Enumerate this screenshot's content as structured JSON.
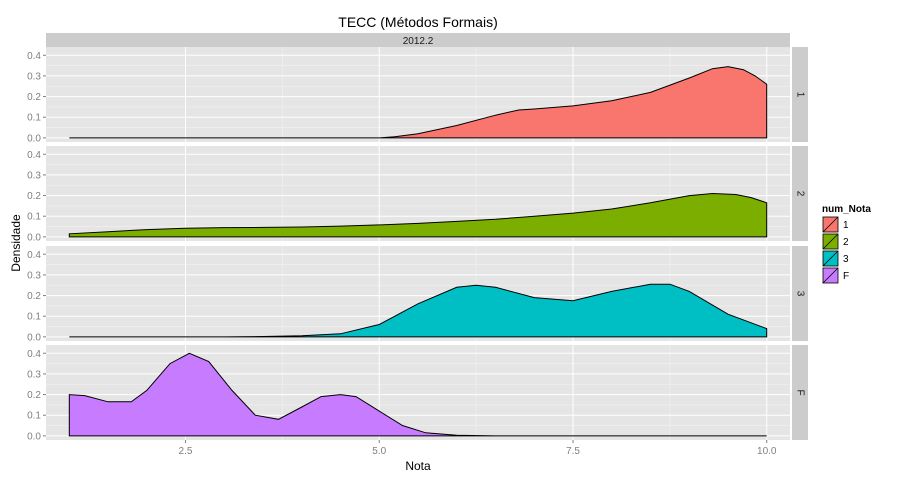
{
  "chart_data": {
    "type": "area",
    "title": "TECC (Métodos Formais)",
    "xlabel": "Nota",
    "ylabel": "Densidade",
    "top_strip": "2012.2",
    "xlim": [
      0.7,
      10.3
    ],
    "ylim": [
      -0.02,
      0.44
    ],
    "x_ticks": [
      2.5,
      5.0,
      7.5,
      10.0
    ],
    "x_tick_labels": [
      "2.5",
      "5.0",
      "7.5",
      "10.0"
    ],
    "y_ticks": [
      0.0,
      0.1,
      0.2,
      0.3,
      0.4
    ],
    "y_tick_labels": [
      "0.0",
      "0.1",
      "0.2",
      "0.3",
      "0.4"
    ],
    "grid": true,
    "legend": {
      "title": "num_Nota",
      "placement": "right",
      "entries": [
        "1",
        "2",
        "3",
        "F"
      ]
    },
    "series": [
      {
        "name": "1",
        "color": "#F8766D",
        "x": [
          1.0,
          2.0,
          3.0,
          4.0,
          5.0,
          5.2,
          5.5,
          6.0,
          6.5,
          6.8,
          7.0,
          7.5,
          8.0,
          8.5,
          9.0,
          9.3,
          9.5,
          9.7,
          9.85,
          10.0
        ],
        "y": [
          0.0,
          0.0,
          0.0,
          0.0,
          0.0,
          0.005,
          0.02,
          0.06,
          0.11,
          0.135,
          0.14,
          0.155,
          0.18,
          0.22,
          0.29,
          0.335,
          0.345,
          0.33,
          0.3,
          0.26
        ]
      },
      {
        "name": "2",
        "color": "#7CAE00",
        "x": [
          1.0,
          1.5,
          2.0,
          2.5,
          3.0,
          3.5,
          4.0,
          4.5,
          5.0,
          5.5,
          6.0,
          6.5,
          7.0,
          7.5,
          8.0,
          8.5,
          9.0,
          9.3,
          9.6,
          9.8,
          10.0
        ],
        "y": [
          0.015,
          0.025,
          0.035,
          0.042,
          0.045,
          0.046,
          0.048,
          0.052,
          0.058,
          0.065,
          0.075,
          0.085,
          0.1,
          0.115,
          0.135,
          0.165,
          0.2,
          0.21,
          0.205,
          0.19,
          0.165
        ]
      },
      {
        "name": "3",
        "color": "#00BFC4",
        "x": [
          1.0,
          2.0,
          3.0,
          3.5,
          4.0,
          4.5,
          5.0,
          5.5,
          6.0,
          6.25,
          6.5,
          7.0,
          7.5,
          8.0,
          8.5,
          8.75,
          9.0,
          9.5,
          10.0
        ],
        "y": [
          0.0,
          0.0,
          0.0,
          0.002,
          0.005,
          0.015,
          0.06,
          0.16,
          0.24,
          0.25,
          0.24,
          0.19,
          0.175,
          0.22,
          0.255,
          0.255,
          0.22,
          0.11,
          0.04
        ]
      },
      {
        "name": "F",
        "color": "#C77CFF",
        "x": [
          1.0,
          1.2,
          1.5,
          1.8,
          2.0,
          2.3,
          2.55,
          2.8,
          3.1,
          3.4,
          3.7,
          4.0,
          4.25,
          4.5,
          4.7,
          5.0,
          5.3,
          5.6,
          6.0,
          6.5,
          7.0,
          8.0,
          10.0
        ],
        "y": [
          0.2,
          0.195,
          0.165,
          0.165,
          0.22,
          0.35,
          0.4,
          0.36,
          0.22,
          0.1,
          0.08,
          0.14,
          0.19,
          0.2,
          0.19,
          0.12,
          0.05,
          0.015,
          0.003,
          0.0,
          0.0,
          0.0,
          0.0
        ]
      }
    ]
  }
}
